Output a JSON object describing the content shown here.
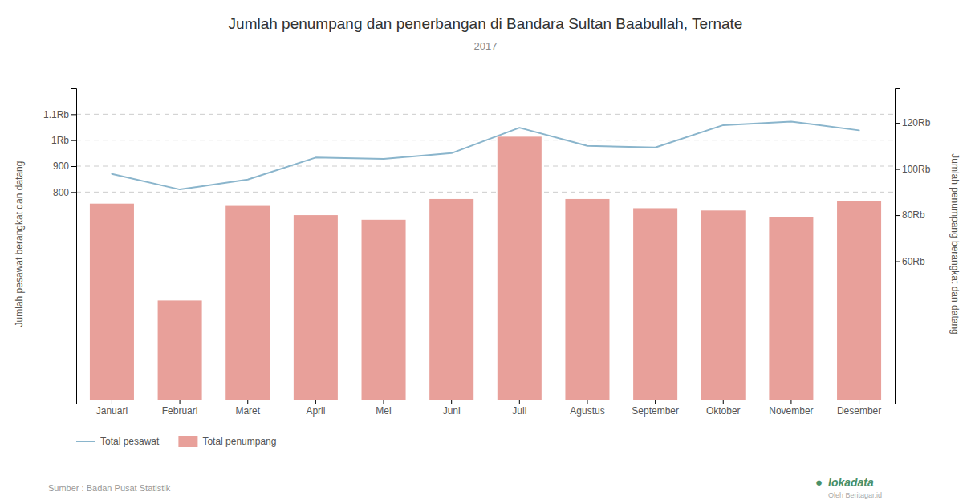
{
  "chart_data": {
    "type": "bar",
    "title": "Jumlah penumpang dan penerbangan di Bandara Sultan Baabullah, Ternate",
    "subtitle": "2017",
    "categories": [
      "Januari",
      "Februari",
      "Maret",
      "April",
      "Mei",
      "Juni",
      "Juli",
      "Agustus",
      "September",
      "Oktober",
      "November",
      "Desember"
    ],
    "series": [
      {
        "name": "Total pesawat",
        "type": "line",
        "axis": "y",
        "color": "#8ab5cc",
        "values": [
          870,
          810,
          848,
          933,
          928,
          950,
          1048,
          978,
          972,
          1058,
          1072,
          1038
        ]
      },
      {
        "name": "Total penumpang",
        "type": "bar",
        "axis": "y2",
        "color": "#e8a09a",
        "values": [
          85000,
          43000,
          84000,
          80000,
          78000,
          87000,
          114000,
          87000,
          83000,
          82000,
          79000,
          86000
        ]
      }
    ],
    "ylabel": "Jumlah pesawat berangkat dan datang",
    "y2label": "Jumlah penumpang berangkat dan datang",
    "ylim": [
      0,
      1200
    ],
    "yticks": [
      800,
      900,
      {
        "value": 1000,
        "label": "1Rb"
      },
      {
        "value": 1100,
        "label": "1.1Rb"
      }
    ],
    "y2lim": [
      0,
      135000
    ],
    "y2ticks": [
      {
        "value": 60000,
        "label": "60Rb"
      },
      {
        "value": 80000,
        "label": "80Rb"
      },
      {
        "value": 100000,
        "label": "100Rb"
      },
      {
        "value": 120000,
        "label": "120Rb"
      }
    ],
    "grid": true,
    "legend": "bottom",
    "annotations": [
      "Sumber : Badan Pusat Statistik",
      "●",
      "lokadata",
      "Oleh Beritagar.id"
    ]
  }
}
